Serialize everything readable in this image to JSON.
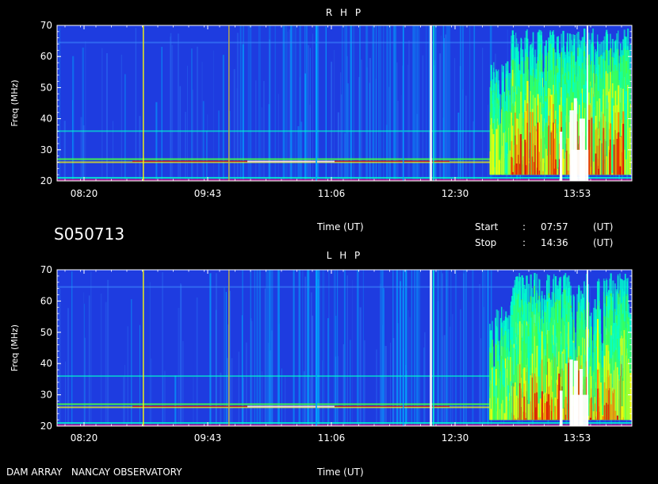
{
  "header": {
    "session_code": "S050713",
    "time_label": "Time (UT)",
    "start_label": "Start",
    "stop_label": "Stop",
    "colon": ":",
    "start_time": "07:57",
    "stop_time": "14:36",
    "ut_unit": "(UT)"
  },
  "footer": {
    "credit": "DAM ARRAY   NANCAY OBSERVATORY",
    "time_label": "Time (UT)"
  },
  "chart_data": [
    {
      "type": "heatmap",
      "title": "R H P",
      "ylabel": "Freq (MHz)",
      "xlabel": "Time (UT)",
      "ylim": [
        20,
        70
      ],
      "y_ticks": [
        20,
        30,
        40,
        50,
        60,
        70
      ],
      "x_ticks": [
        "08:20",
        "09:43",
        "11:06",
        "12:30",
        "13:53"
      ],
      "colorscale": [
        "#1e3ce0",
        "#00aaff",
        "#00ffcc",
        "#44ff44",
        "#ffff00",
        "#ff8800",
        "#e00000",
        "#ffffff"
      ]
    },
    {
      "type": "heatmap",
      "title": "L H P",
      "ylabel": "Freq (MHz)",
      "xlabel": "Time (UT)",
      "ylim": [
        20,
        70
      ],
      "y_ticks": [
        20,
        30,
        40,
        50,
        60,
        70
      ],
      "x_ticks": [
        "08:20",
        "09:43",
        "11:06",
        "12:30",
        "13:53"
      ],
      "colorscale": [
        "#1e3ce0",
        "#00aaff",
        "#00ffcc",
        "#44ff44",
        "#ffff00",
        "#ff8800",
        "#e00000",
        "#ffffff"
      ]
    }
  ]
}
